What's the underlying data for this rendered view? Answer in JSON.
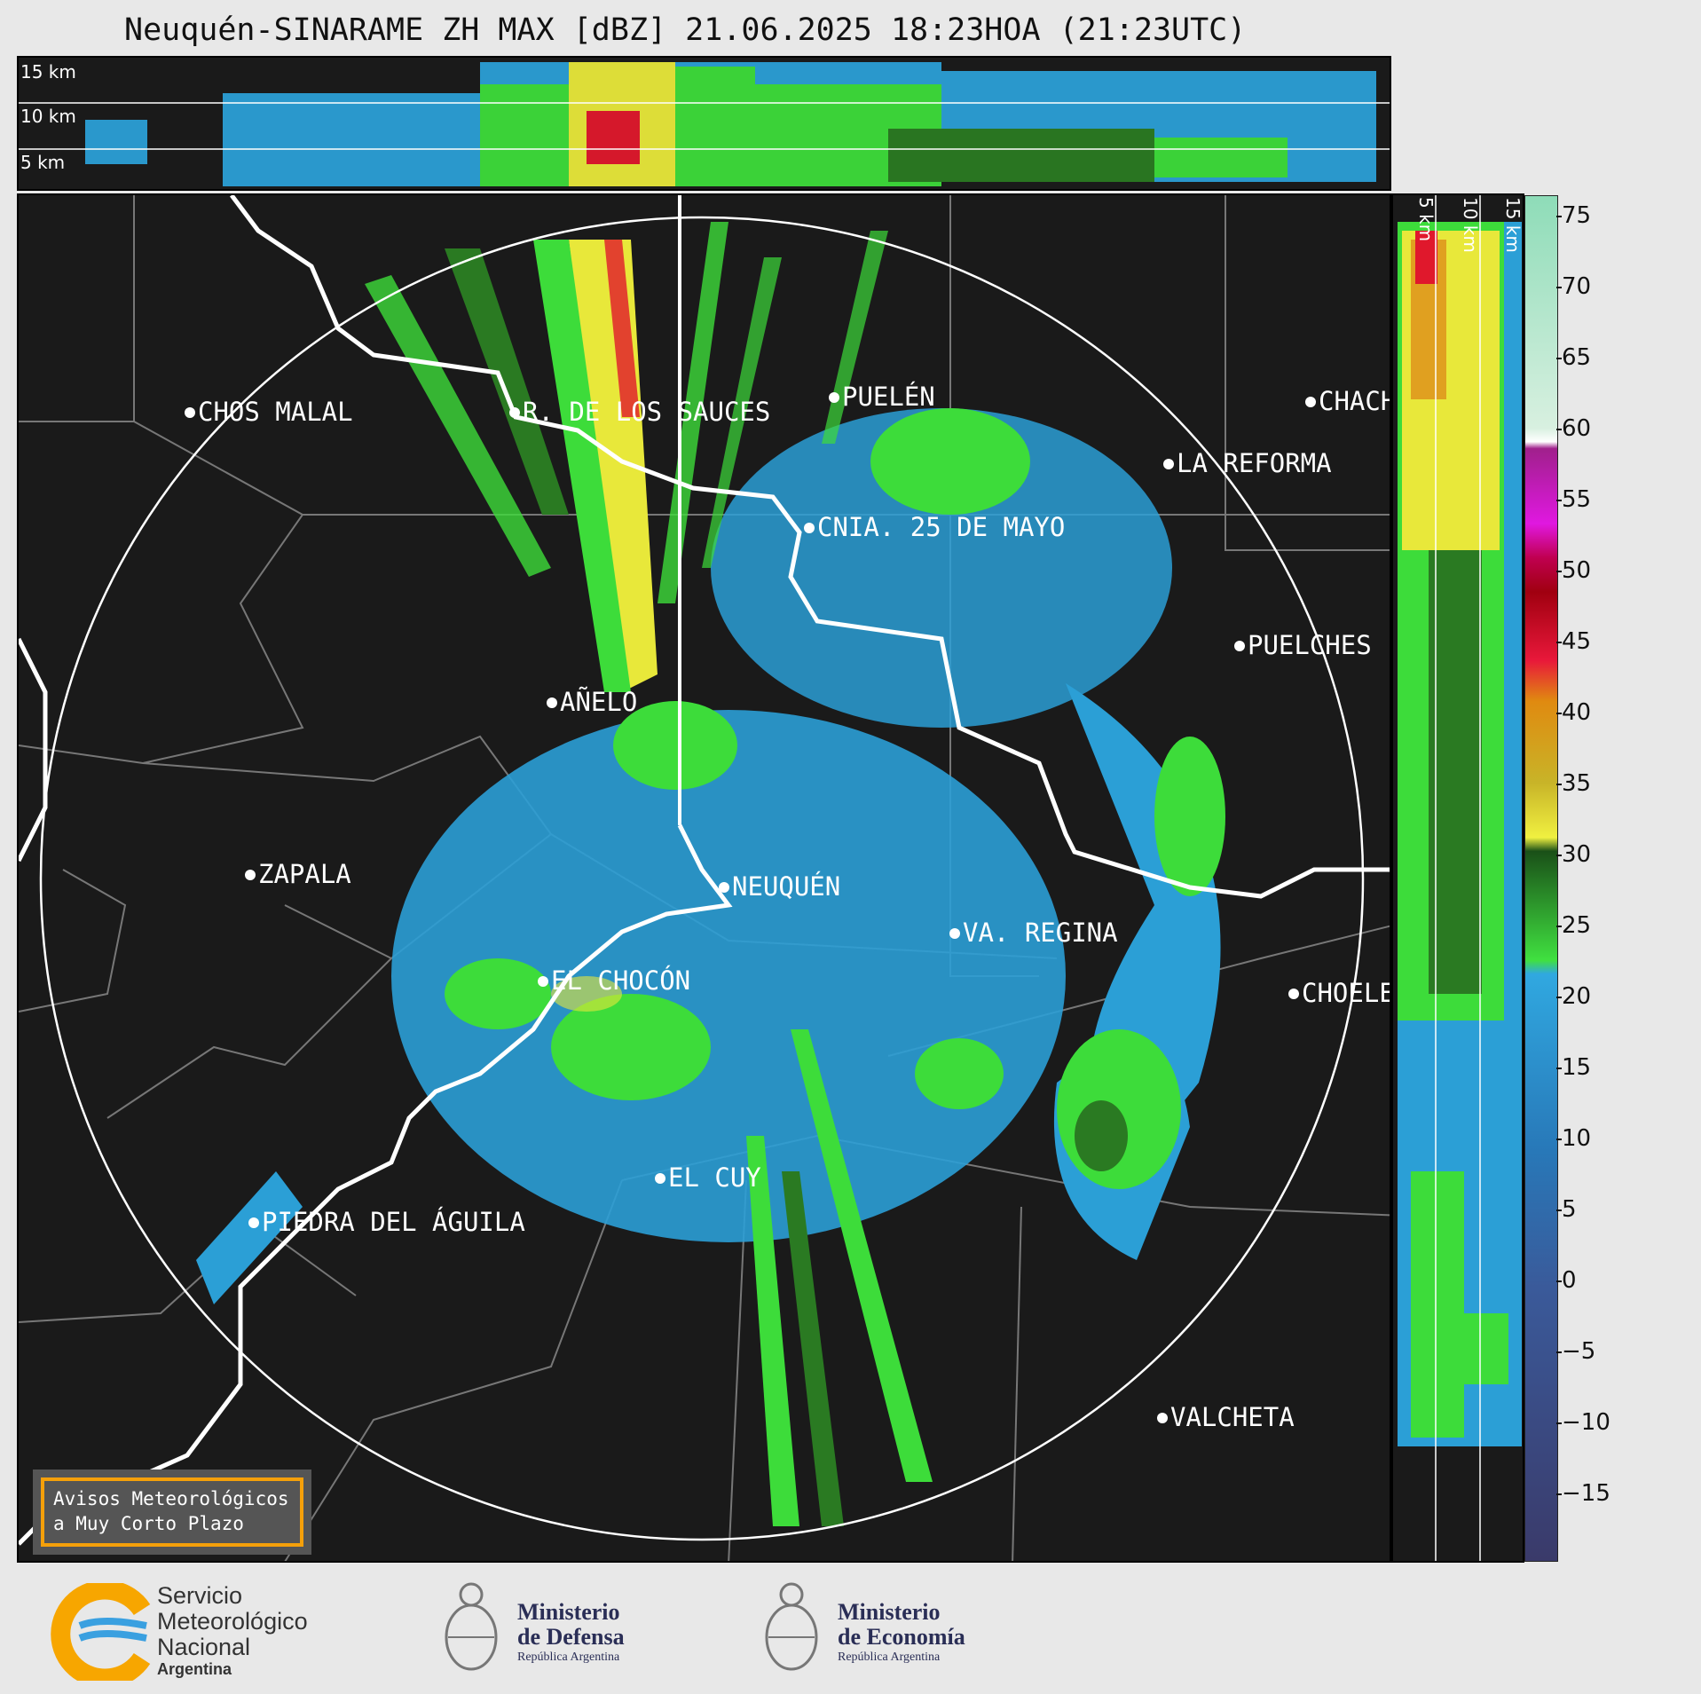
{
  "title": "Neuquén-SINARAME ZH MAX [dBZ] 21.06.2025 18:23HOA (21:23UTC)",
  "top_panel": {
    "height_labels": [
      "15 km",
      "10 km",
      "5 km"
    ]
  },
  "side_panel": {
    "height_labels": [
      "5 km",
      "10 km",
      "15 km"
    ]
  },
  "colorbar": {
    "ticks": [
      "75",
      "70",
      "65",
      "60",
      "55",
      "50",
      "45",
      "40",
      "35",
      "30",
      "25",
      "20",
      "15",
      "10",
      "5",
      "0",
      "−5",
      "−10",
      "−15"
    ],
    "range": [
      -20,
      77
    ]
  },
  "cities": [
    {
      "name": "CHOS MALAL",
      "label": "CHOS MALAL"
    },
    {
      "name": "R. DE LOS SAUCES",
      "label": "R. DE LOS SAUCES"
    },
    {
      "name": "PUELÉN",
      "label": "PUELÉN"
    },
    {
      "name": "CHACH",
      "label": "CHACH"
    },
    {
      "name": "LA REFORMA",
      "label": "LA REFORMA"
    },
    {
      "name": "CNIA. 25 DE MAYO",
      "label": "CNIA. 25 DE MAYO"
    },
    {
      "name": "PUELCHES",
      "label": "PUELCHES"
    },
    {
      "name": "AÑELO",
      "label": "AÑELO"
    },
    {
      "name": "ZAPALA",
      "label": "ZAPALA"
    },
    {
      "name": "NEUQUÉN",
      "label": "NEUQUÉN"
    },
    {
      "name": "VA. REGINA",
      "label": "VA. REGINA"
    },
    {
      "name": "EL CHOCÓN",
      "label": "EL CHOCÓN"
    },
    {
      "name": "CHOELE",
      "label": "CHOELE"
    },
    {
      "name": "EL CUY",
      "label": "EL CUY"
    },
    {
      "name": "PIEDRA DEL ÁGUILA",
      "label": "PIEDRA DEL ÁGUILA"
    },
    {
      "name": "VALCHETA",
      "label": "VALCHETA"
    }
  ],
  "notice": {
    "line1": "Avisos Meteorológicos",
    "line2": "a Muy Corto Plazo"
  },
  "logos": {
    "smn": {
      "line1": "Servicio",
      "line2": "Meteorológico",
      "line3": "Nacional",
      "line4": "Argentina"
    },
    "defensa": {
      "line1": "Ministerio",
      "line2": "de Defensa",
      "line3": "República Argentina"
    },
    "economia": {
      "line1": "Ministerio",
      "line2": "de Economía",
      "line3": "República Argentina"
    }
  },
  "colors": {
    "background": "#1a1a1a",
    "echo_light": "#2b9fd6",
    "echo_green": "#3ddc3a",
    "echo_dark_green": "#2a7a22",
    "echo_yellow": "#e8e83a",
    "echo_red": "#e0182c",
    "accent_orange": "#f5a00a"
  }
}
